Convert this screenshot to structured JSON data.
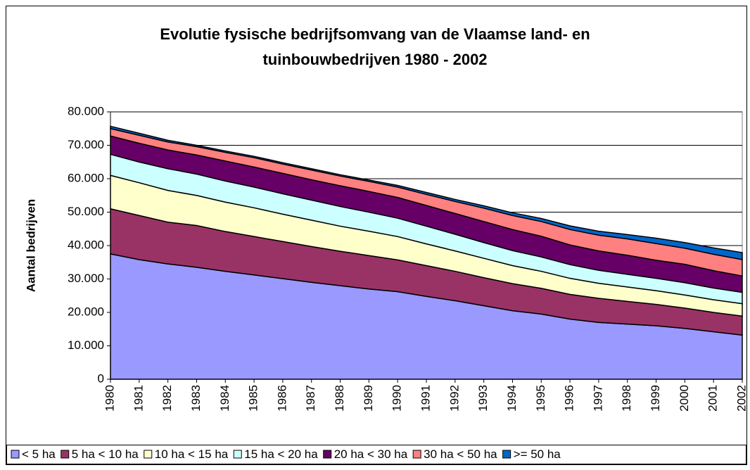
{
  "chart_data": {
    "type": "stacked_area",
    "title": [
      "Evolutie fysische bedrijfsomvang van de Vlaamse land- en",
      "tuinbouwbedrijven 1980 - 2002"
    ],
    "y_label": "Aantal bedrijven",
    "categories": [
      "1980",
      "1981",
      "1982",
      "1983",
      "1984",
      "1985",
      "1986",
      "1987",
      "1988",
      "1989",
      "1990",
      "1991",
      "1992",
      "1993",
      "1994",
      "1995",
      "1996",
      "1997",
      "1998",
      "1999",
      "2000",
      "2001",
      "2002"
    ],
    "ylim": [
      0,
      80000
    ],
    "yticks": [
      0,
      {
        "value": 10000,
        "label": "10.000"
      },
      {
        "value": 20000,
        "label": "20.000"
      },
      {
        "value": 30000,
        "label": "30.000"
      },
      {
        "value": 40000,
        "label": "40.000"
      },
      {
        "value": 50000,
        "label": "50.000"
      },
      {
        "value": 60000,
        "label": "60.000"
      },
      {
        "value": 70000,
        "label": "70.000"
      },
      {
        "value": 80000,
        "label": "80.000"
      }
    ],
    "grid": true,
    "legend": "bottom",
    "series": [
      {
        "name": "< 5 ha",
        "color": "#9999ff",
        "values": [
          37500,
          35800,
          34500,
          33500,
          32300,
          31200,
          30100,
          29000,
          28000,
          27000,
          26200,
          24800,
          23500,
          22000,
          20500,
          19500,
          18000,
          17000,
          16500,
          16000,
          15200,
          14200,
          13200
        ]
      },
      {
        "name": "5 ha < 10 ha",
        "color": "#993366",
        "values": [
          13500,
          13200,
          12500,
          12500,
          11900,
          11500,
          11100,
          10700,
          10300,
          10000,
          9500,
          9200,
          8800,
          8400,
          8100,
          7700,
          7400,
          7200,
          6800,
          6400,
          6100,
          5800,
          5700
        ]
      },
      {
        "name": "10 ha < 15 ha",
        "color": "#ffffcc",
        "values": [
          10000,
          9800,
          9500,
          9000,
          8800,
          8600,
          8200,
          7900,
          7500,
          7300,
          7000,
          6500,
          6100,
          5800,
          5400,
          5100,
          4800,
          4500,
          4300,
          4100,
          3900,
          3800,
          3700
        ]
      },
      {
        "name": "15 ha < 20 ha",
        "color": "#ccffff",
        "values": [
          6300,
          6200,
          6500,
          6400,
          6300,
          6200,
          6100,
          6000,
          5900,
          5700,
          5500,
          5300,
          5000,
          4700,
          4500,
          4300,
          4100,
          3900,
          3800,
          3700,
          3700,
          3500,
          3400
        ]
      },
      {
        "name": "20 ha < 30 ha",
        "color": "#660066",
        "values": [
          5500,
          5600,
          5600,
          5700,
          6000,
          6000,
          6100,
          6100,
          6200,
          6200,
          6200,
          6200,
          6200,
          6300,
          6300,
          6200,
          5900,
          5800,
          5700,
          5400,
          5500,
          5200,
          4900
        ]
      },
      {
        "name": "30 ha < 50 ha",
        "color": "#ff8080",
        "values": [
          2200,
          2400,
          2400,
          2500,
          2600,
          2800,
          2800,
          2900,
          2900,
          3000,
          3100,
          3300,
          3600,
          4000,
          4200,
          4400,
          4600,
          4700,
          4900,
          5000,
          4800,
          4900,
          4900
        ]
      },
      {
        "name": ">= 50 ha",
        "color": "#0066cc",
        "values": [
          700,
          600,
          500,
          400,
          400,
          400,
          400,
          400,
          400,
          400,
          500,
          600,
          600,
          700,
          800,
          900,
          1100,
          1200,
          1300,
          1600,
          1700,
          1900,
          2100
        ]
      }
    ]
  }
}
